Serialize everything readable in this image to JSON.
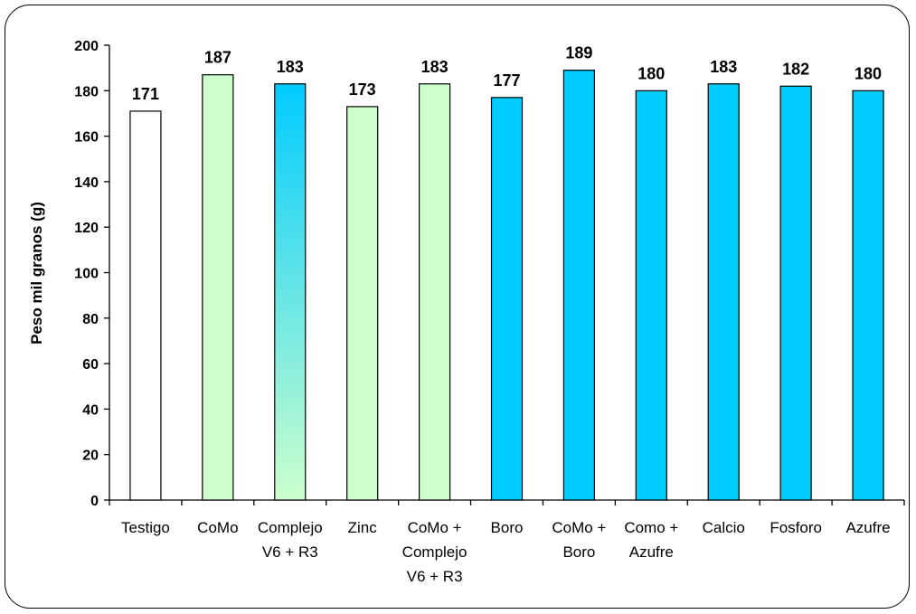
{
  "chart_data": {
    "type": "bar",
    "title": "",
    "xlabel": "",
    "ylabel": "Peso mil granos (g)",
    "ylim": [
      0,
      200
    ],
    "yticks": [
      0,
      20,
      40,
      60,
      80,
      100,
      120,
      140,
      160,
      180,
      200
    ],
    "grid": false,
    "categories": [
      [
        "Testigo"
      ],
      [
        "CoMo"
      ],
      [
        "Complejo",
        "V6 + R3"
      ],
      [
        "Zinc"
      ],
      [
        "CoMo +",
        "Complejo",
        "V6 + R3"
      ],
      [
        "Boro"
      ],
      [
        "CoMo +",
        "Boro"
      ],
      [
        "Como +",
        "Azufre"
      ],
      [
        "Calcio"
      ],
      [
        "Fosforo"
      ],
      [
        "Azufre"
      ]
    ],
    "values": [
      171,
      187,
      183,
      173,
      183,
      177,
      189,
      180,
      183,
      182,
      180
    ],
    "value_labels": [
      "171",
      "187",
      "183",
      "173",
      "183",
      "177",
      "189",
      "180",
      "183",
      "182",
      "180"
    ],
    "bar_fills": [
      "white",
      "green",
      "gradient",
      "green",
      "green",
      "blue",
      "blue",
      "blue",
      "blue",
      "blue",
      "blue"
    ],
    "colors": {
      "white": "#ffffff",
      "green": "#ccffcc",
      "blue": "#00ccff",
      "gradient_top": "#00ccff",
      "gradient_bottom": "#ccffcc",
      "axis": "#000000"
    }
  }
}
